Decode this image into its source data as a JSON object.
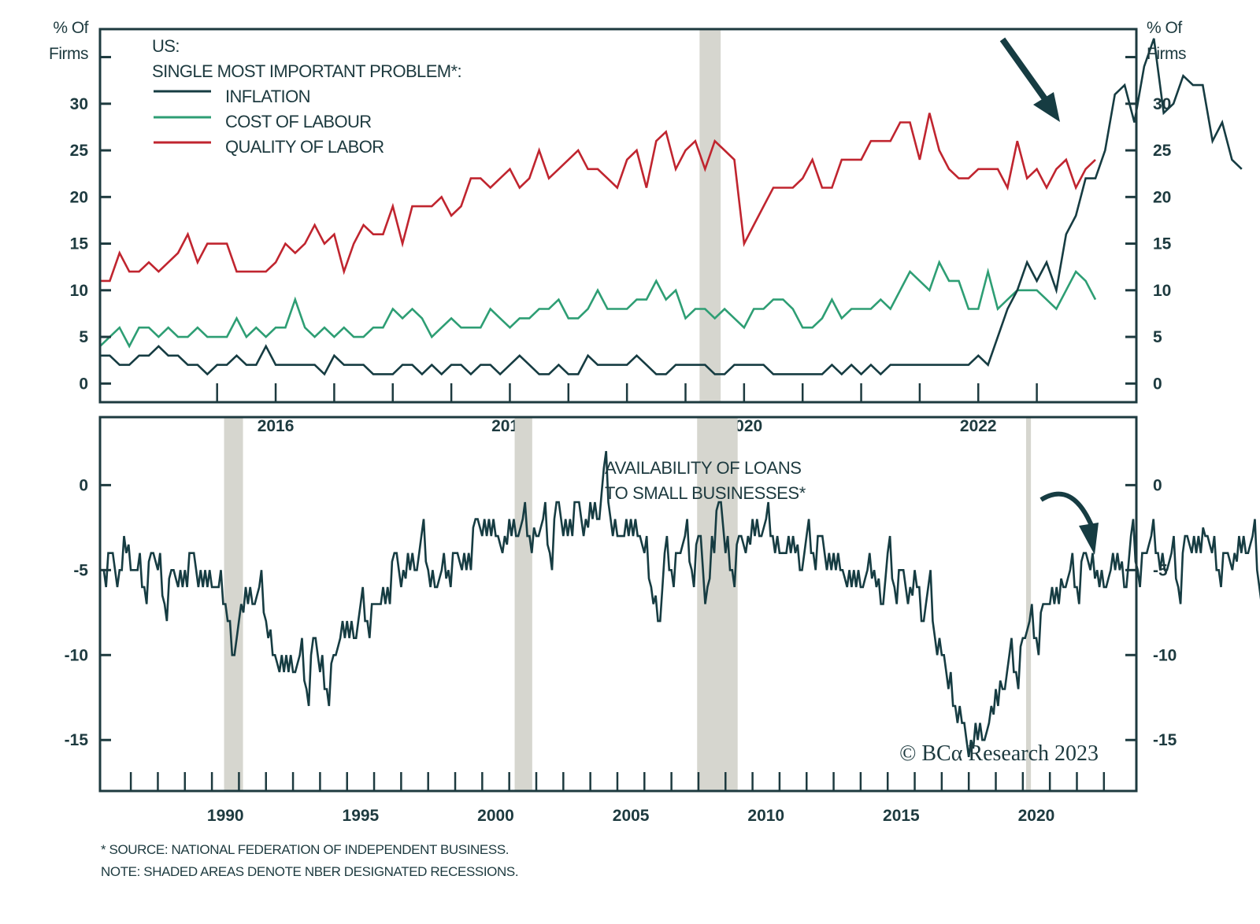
{
  "colors": {
    "axis": "#1d3a3f",
    "inflation": "#163c42",
    "cost_of_labour": "#2e9e74",
    "quality_of_labor": "#c0252f",
    "recession": "#d6d6cf",
    "loans": "#163c42"
  },
  "footnotes": {
    "source": "* SOURCE: NATIONAL FEDERATION OF INDEPENDENT BUSINESS.",
    "note": "NOTE: SHADED AREAS DENOTE NBER DESIGNATED RECESSIONS."
  },
  "copyright": "© BCα Research 2023",
  "chart_data": [
    {
      "type": "line",
      "title": "US: SINGLE MOST IMPORTANT PROBLEM*:",
      "legend_title_line1": "US:",
      "legend_title_line2": "SINGLE MOST IMPORTANT PROBLEM*:",
      "legend_position": "top-left",
      "ylabel_left": [
        "% Of",
        "Firms"
      ],
      "ylabel_right": [
        "% Of",
        "Firms"
      ],
      "xlim": [
        2015.0,
        2023.85
      ],
      "ylim": [
        -2,
        38
      ],
      "yticks": [
        0,
        5,
        10,
        15,
        20,
        25,
        30
      ],
      "xticks_minor": [
        2016.0,
        2016.5,
        2017.0,
        2017.5,
        2018.0,
        2018.5,
        2019.0,
        2019.5,
        2020.0,
        2020.5,
        2021.0,
        2021.5,
        2022.0,
        2022.5,
        2023.0
      ],
      "xtick_labels": [
        {
          "year": 2016,
          "label": "2016"
        },
        {
          "year": 2018,
          "label": "2018"
        },
        {
          "year": 2020,
          "label": "2020"
        },
        {
          "year": 2022,
          "label": "2022"
        }
      ],
      "x_start": 2015.0,
      "x_step_months": 1,
      "recessions": [
        [
          2020.12,
          2020.3
        ]
      ],
      "series": [
        {
          "name": "INFLATION",
          "color_key": "inflation",
          "values": [
            3,
            3,
            2,
            2,
            3,
            3,
            4,
            3,
            3,
            2,
            2,
            1,
            2,
            2,
            3,
            2,
            2,
            4,
            2,
            2,
            2,
            2,
            2,
            1,
            3,
            2,
            2,
            2,
            1,
            1,
            1,
            2,
            2,
            1,
            2,
            1,
            2,
            2,
            1,
            2,
            2,
            1,
            2,
            3,
            2,
            1,
            1,
            2,
            1,
            1,
            3,
            2,
            2,
            2,
            2,
            3,
            2,
            1,
            1,
            2,
            2,
            2,
            2,
            1,
            1,
            2,
            2,
            2,
            2,
            1,
            1,
            1,
            1,
            1,
            1,
            2,
            1,
            2,
            1,
            2,
            1,
            2,
            2,
            2,
            2,
            2,
            2,
            2,
            2,
            2,
            3,
            2,
            5,
            8,
            10,
            13,
            11,
            13,
            10,
            16,
            18,
            22,
            22,
            25,
            31,
            32,
            28,
            34,
            37,
            29,
            30,
            33,
            32,
            32,
            26,
            28,
            24,
            23
          ]
        },
        {
          "name": "COST OF LABOUR",
          "color_key": "cost_of_labour",
          "values": [
            4,
            5,
            6,
            4,
            6,
            6,
            5,
            6,
            5,
            5,
            6,
            5,
            5,
            5,
            7,
            5,
            6,
            5,
            6,
            6,
            9,
            6,
            5,
            6,
            5,
            6,
            5,
            5,
            6,
            6,
            8,
            7,
            8,
            7,
            5,
            6,
            7,
            6,
            6,
            6,
            8,
            7,
            6,
            7,
            7,
            8,
            8,
            9,
            7,
            7,
            8,
            10,
            8,
            8,
            8,
            9,
            9,
            11,
            9,
            10,
            7,
            8,
            8,
            7,
            8,
            7,
            6,
            8,
            8,
            9,
            9,
            8,
            6,
            6,
            7,
            9,
            7,
            8,
            8,
            8,
            9,
            8,
            10,
            12,
            11,
            10,
            13,
            11,
            11,
            8,
            8,
            12,
            8,
            9,
            10,
            10,
            10,
            9,
            8,
            10,
            12,
            11,
            9
          ]
        },
        {
          "name": "QUALITY OF LABOR",
          "color_key": "quality_of_labor",
          "values": [
            11,
            11,
            14,
            12,
            12,
            13,
            12,
            13,
            14,
            16,
            13,
            15,
            15,
            15,
            12,
            12,
            12,
            12,
            13,
            15,
            14,
            15,
            17,
            15,
            16,
            12,
            15,
            17,
            16,
            16,
            19,
            15,
            19,
            19,
            19,
            20,
            18,
            19,
            22,
            22,
            21,
            22,
            23,
            21,
            22,
            25,
            22,
            23,
            24,
            25,
            23,
            23,
            22,
            21,
            24,
            25,
            21,
            26,
            27,
            23,
            25,
            26,
            23,
            26,
            25,
            24,
            15,
            17,
            19,
            21,
            21,
            21,
            22,
            24,
            21,
            21,
            24,
            24,
            24,
            26,
            26,
            26,
            28,
            28,
            24,
            29,
            25,
            23,
            22,
            22,
            23,
            23,
            23,
            21,
            26,
            22,
            23,
            21,
            23,
            24,
            21,
            23,
            24
          ]
        }
      ],
      "annotations": [
        {
          "type": "arrow",
          "direction": "down-right",
          "meaning": "inflation concern falling"
        }
      ]
    },
    {
      "type": "line",
      "title": "AVAILABILITY OF LOANS TO SMALL BUSINESSES*",
      "title_line1": "AVAILABILITY OF LOANS",
      "title_line2": "TO SMALL BUSINESSES*",
      "xlim": [
        1985.86,
        2024.2
      ],
      "ylim": [
        -18,
        4
      ],
      "yticks": [
        0,
        -5,
        -10,
        -15
      ],
      "ytick_labels": [
        "0",
        "-5",
        "-10",
        "-15"
      ],
      "xticks_minor_years": "1987-2023 annual",
      "xtick_labels": [
        {
          "year": 1990.5,
          "label": "1990"
        },
        {
          "year": 1995.5,
          "label": "1995"
        },
        {
          "year": 2000.5,
          "label": "2000"
        },
        {
          "year": 2005.5,
          "label": "2005"
        },
        {
          "year": 2010.5,
          "label": "2010"
        },
        {
          "year": 2015.5,
          "label": "2015"
        },
        {
          "year": 2020.5,
          "label": "2020"
        }
      ],
      "x_start": 1986.0,
      "x_step_months": 3,
      "recessions": [
        [
          1990.45,
          1991.15
        ],
        [
          2001.2,
          2001.85
        ],
        [
          2007.95,
          2009.45
        ],
        [
          2020.12,
          2020.3
        ]
      ],
      "series": [
        {
          "name": "AVAILABILITY OF LOANS TO SMALL BUSINESSES",
          "color_key": "loans",
          "values": [
            -5,
            -4,
            -6,
            -3,
            -5,
            -5,
            -6,
            -4,
            -5,
            -7,
            -5,
            -6,
            -5,
            -4,
            -6,
            -5,
            -6,
            -6,
            -7,
            -10,
            -8,
            -6,
            -7,
            -6,
            -8,
            -10,
            -11,
            -10,
            -11,
            -10,
            -12,
            -9,
            -11,
            -12,
            -10,
            -9,
            -8,
            -9,
            -7,
            -8,
            -7,
            -7,
            -6,
            -4,
            -6,
            -4,
            -5,
            -3,
            -5,
            -6,
            -5,
            -5,
            -4,
            -5,
            -4,
            -2,
            -3,
            -2,
            -3,
            -4,
            -2,
            -3,
            -2,
            -3,
            -3,
            -2,
            -4,
            -1,
            -3,
            -2,
            -1,
            -3,
            -1,
            -2,
            1,
            -2,
            -3,
            -3,
            -2,
            -3,
            -4,
            -6,
            -8,
            -4,
            -5,
            -4,
            -3,
            -5,
            -3,
            -7,
            -3,
            -1,
            -4,
            -5,
            -3,
            -4,
            -2,
            -3,
            -2,
            -3,
            -4,
            -4,
            -3,
            -5,
            -3,
            -4,
            -3,
            -5,
            -4,
            -5,
            -6,
            -5,
            -6,
            -5,
            -5,
            -7,
            -4,
            -6,
            -5,
            -7,
            -5,
            -8,
            -6,
            -9,
            -10,
            -12,
            -13,
            -14,
            -16,
            -14,
            -15,
            -14,
            -12,
            -12,
            -10,
            -11,
            -9,
            -8,
            -9,
            -7,
            -7,
            -6,
            -6,
            -5,
            -6,
            -4,
            -5,
            -5,
            -6,
            -5,
            -4,
            -6,
            -3,
            -5,
            -4,
            -3,
            -4,
            -5,
            -4,
            -6,
            -3,
            -4,
            -3,
            -3,
            -4,
            -5,
            -4,
            -5,
            -3,
            -4,
            -3,
            -6,
            -5,
            -4,
            -3,
            -2,
            -4,
            -2,
            -3,
            -2,
            -1,
            -3,
            -2,
            -1,
            -2,
            -1,
            -3,
            -2,
            -3,
            -4,
            -6,
            -5,
            -7,
            -9,
            -6
          ]
        }
      ],
      "annotations": [
        {
          "type": "curved-arrow",
          "direction": "down-right",
          "meaning": "loan availability rolling over"
        }
      ]
    }
  ]
}
